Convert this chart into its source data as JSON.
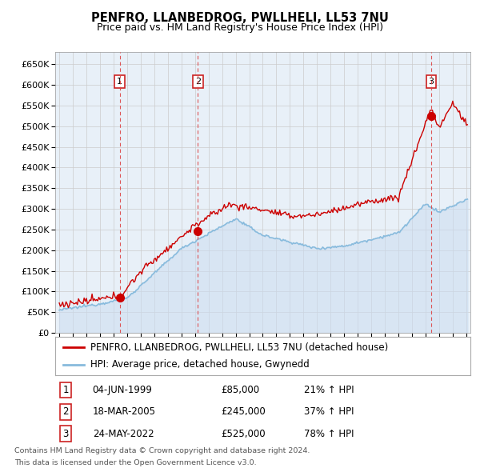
{
  "title": "PENFRO, LLANBEDROG, PWLLHELI, LL53 7NU",
  "subtitle": "Price paid vs. HM Land Registry's House Price Index (HPI)",
  "legend_line1": "PENFRO, LLANBEDROG, PWLLHELI, LL53 7NU (detached house)",
  "legend_line2": "HPI: Average price, detached house, Gwynedd",
  "footer1": "Contains HM Land Registry data © Crown copyright and database right 2024.",
  "footer2": "This data is licensed under the Open Government Licence v3.0.",
  "transactions": [
    {
      "num": 1,
      "date": "04-JUN-1999",
      "price": "£85,000",
      "pct": "21% ↑ HPI",
      "year": 1999.45,
      "val": 85000
    },
    {
      "num": 2,
      "date": "18-MAR-2005",
      "price": "£245,000",
      "pct": "37% ↑ HPI",
      "year": 2005.21,
      "val": 245000
    },
    {
      "num": 3,
      "date": "24-MAY-2022",
      "price": "£525,000",
      "pct": "78% ↑ HPI",
      "year": 2022.4,
      "val": 525000
    }
  ],
  "ylim": [
    0,
    680000
  ],
  "xlim_left": 1994.7,
  "xlim_right": 2025.3,
  "price_color": "#cc0000",
  "hpi_color": "#88bbdd",
  "hpi_fill_color": "#ccddf0",
  "grid_color": "#cccccc",
  "chart_bg": "#e8f0f8",
  "fig_bg": "#ffffff",
  "vline_color": "#dd4444",
  "marker_color": "#cc0000",
  "box_edge_color": "#cc2222"
}
